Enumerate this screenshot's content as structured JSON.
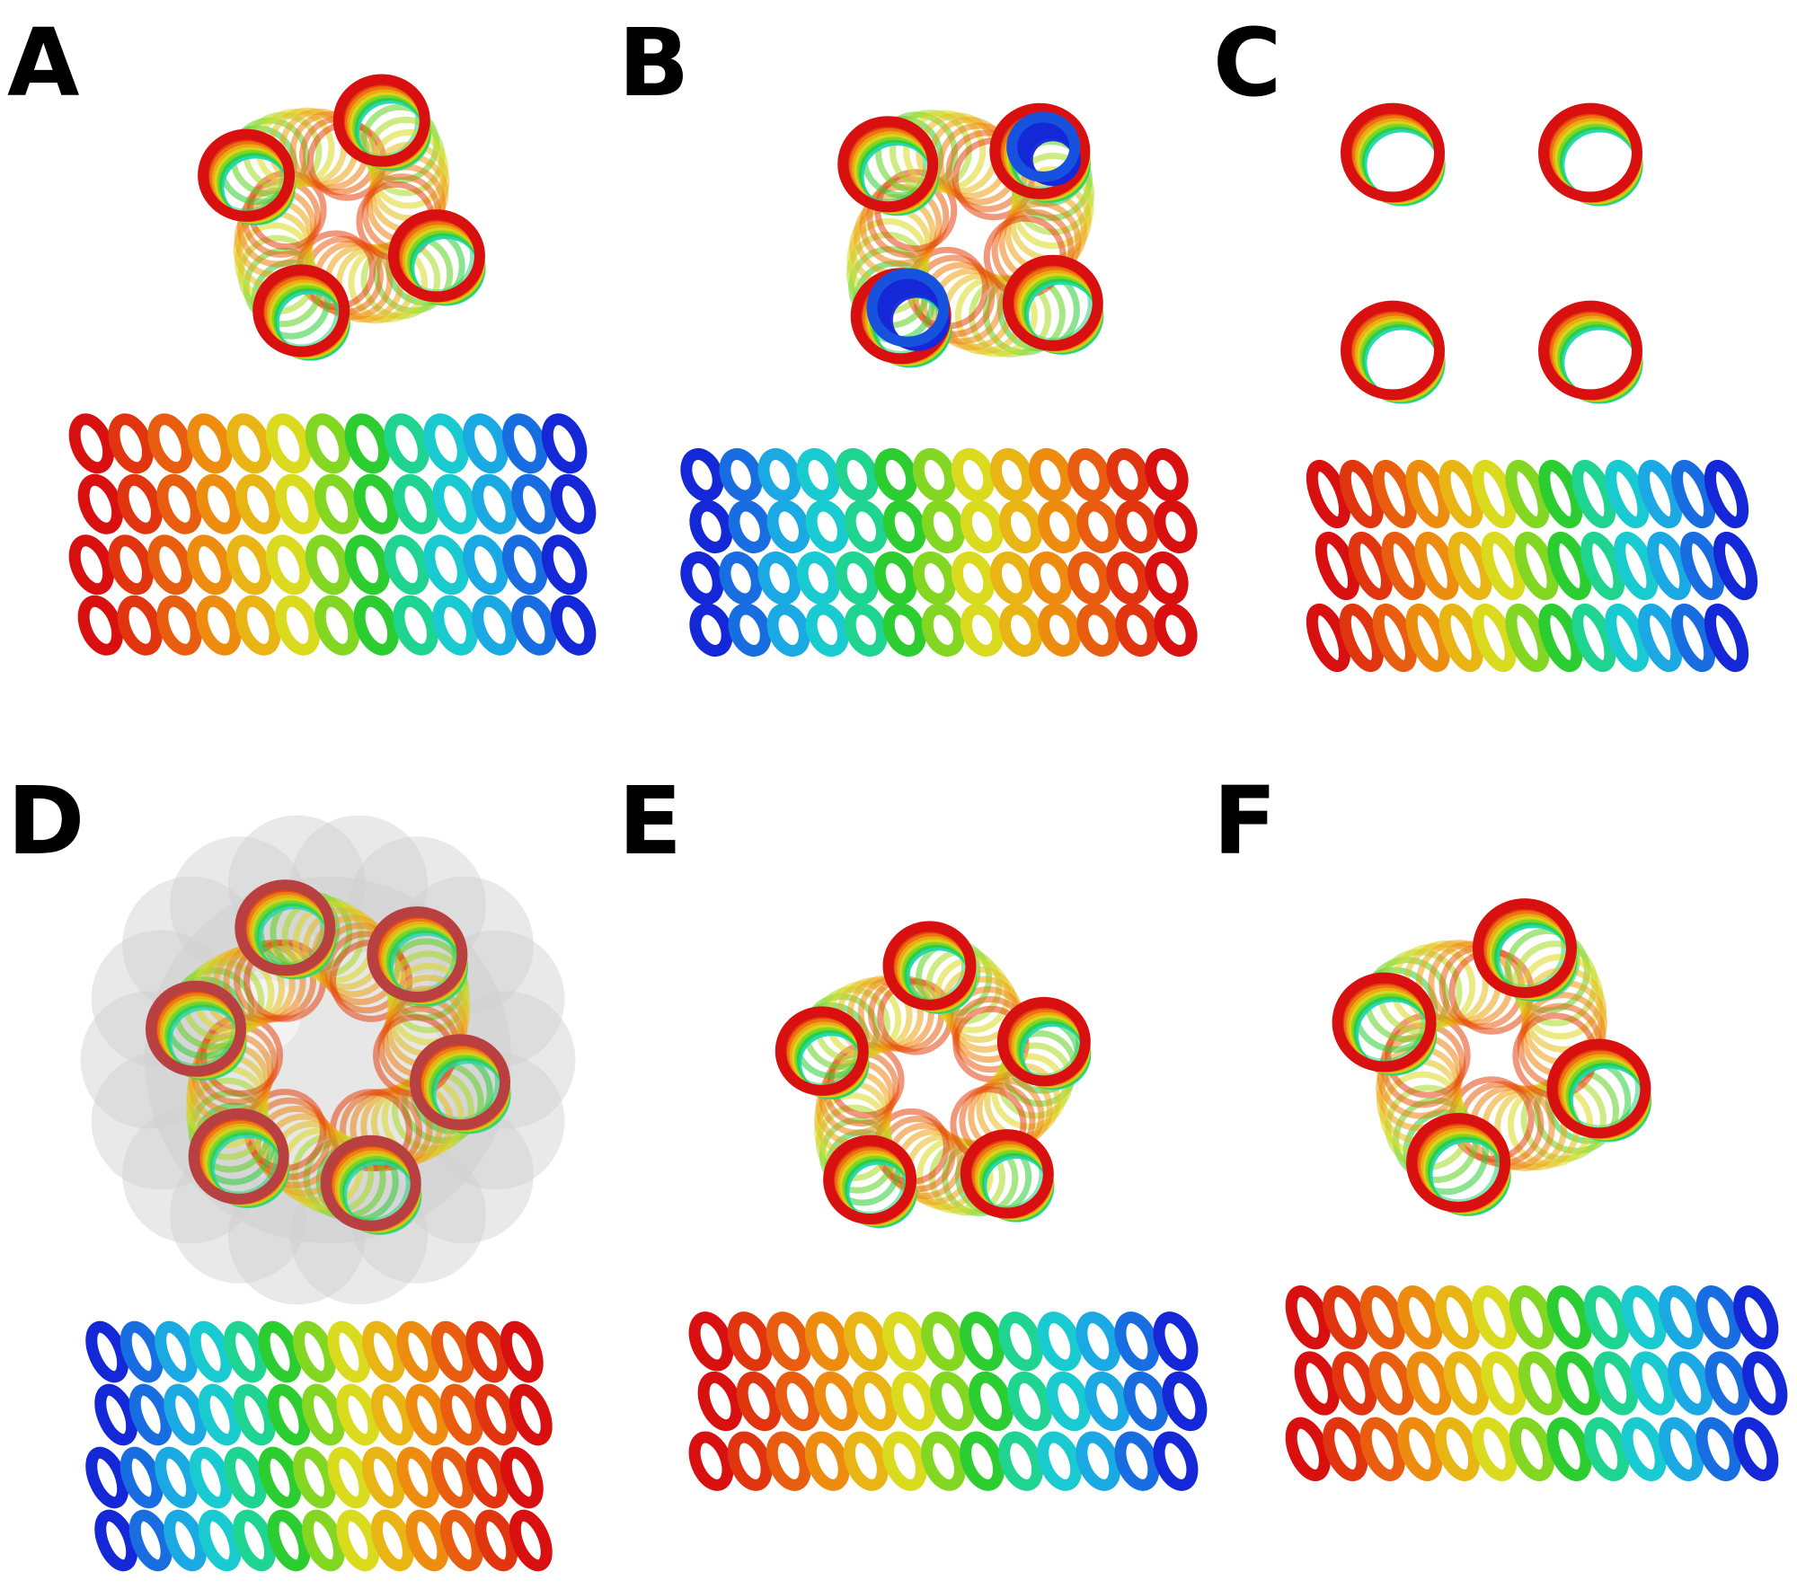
{
  "figure": {
    "panels": [
      {
        "id": "A",
        "label": "A",
        "top_view": "tetramer-splayed",
        "side_view": "tetramer-bundle"
      },
      {
        "id": "B",
        "label": "B",
        "top_view": "tetramer-antiparallel",
        "side_view": "tetramer-bundle"
      },
      {
        "id": "C",
        "label": "C",
        "top_view": "tetramer-square",
        "side_view": "tetramer-bundle"
      },
      {
        "id": "D",
        "label": "D",
        "top_view": "hexamer-ring-with-surface",
        "side_view": "hexamer-bundle"
      },
      {
        "id": "E",
        "label": "E",
        "top_view": "pentamer-ring",
        "side_view": "pentamer-bundle"
      },
      {
        "id": "F",
        "label": "F",
        "top_view": "tetramer-ring",
        "side_view": "tetramer-bundle"
      }
    ],
    "colors": {
      "rainbow": [
        "#1428d8",
        "#1aa0e8",
        "#18d8c8",
        "#2ecc22",
        "#d8e020",
        "#f0a010",
        "#e85010",
        "#d81010"
      ],
      "surface": "#cfcfcf",
      "label": "#000000"
    }
  }
}
